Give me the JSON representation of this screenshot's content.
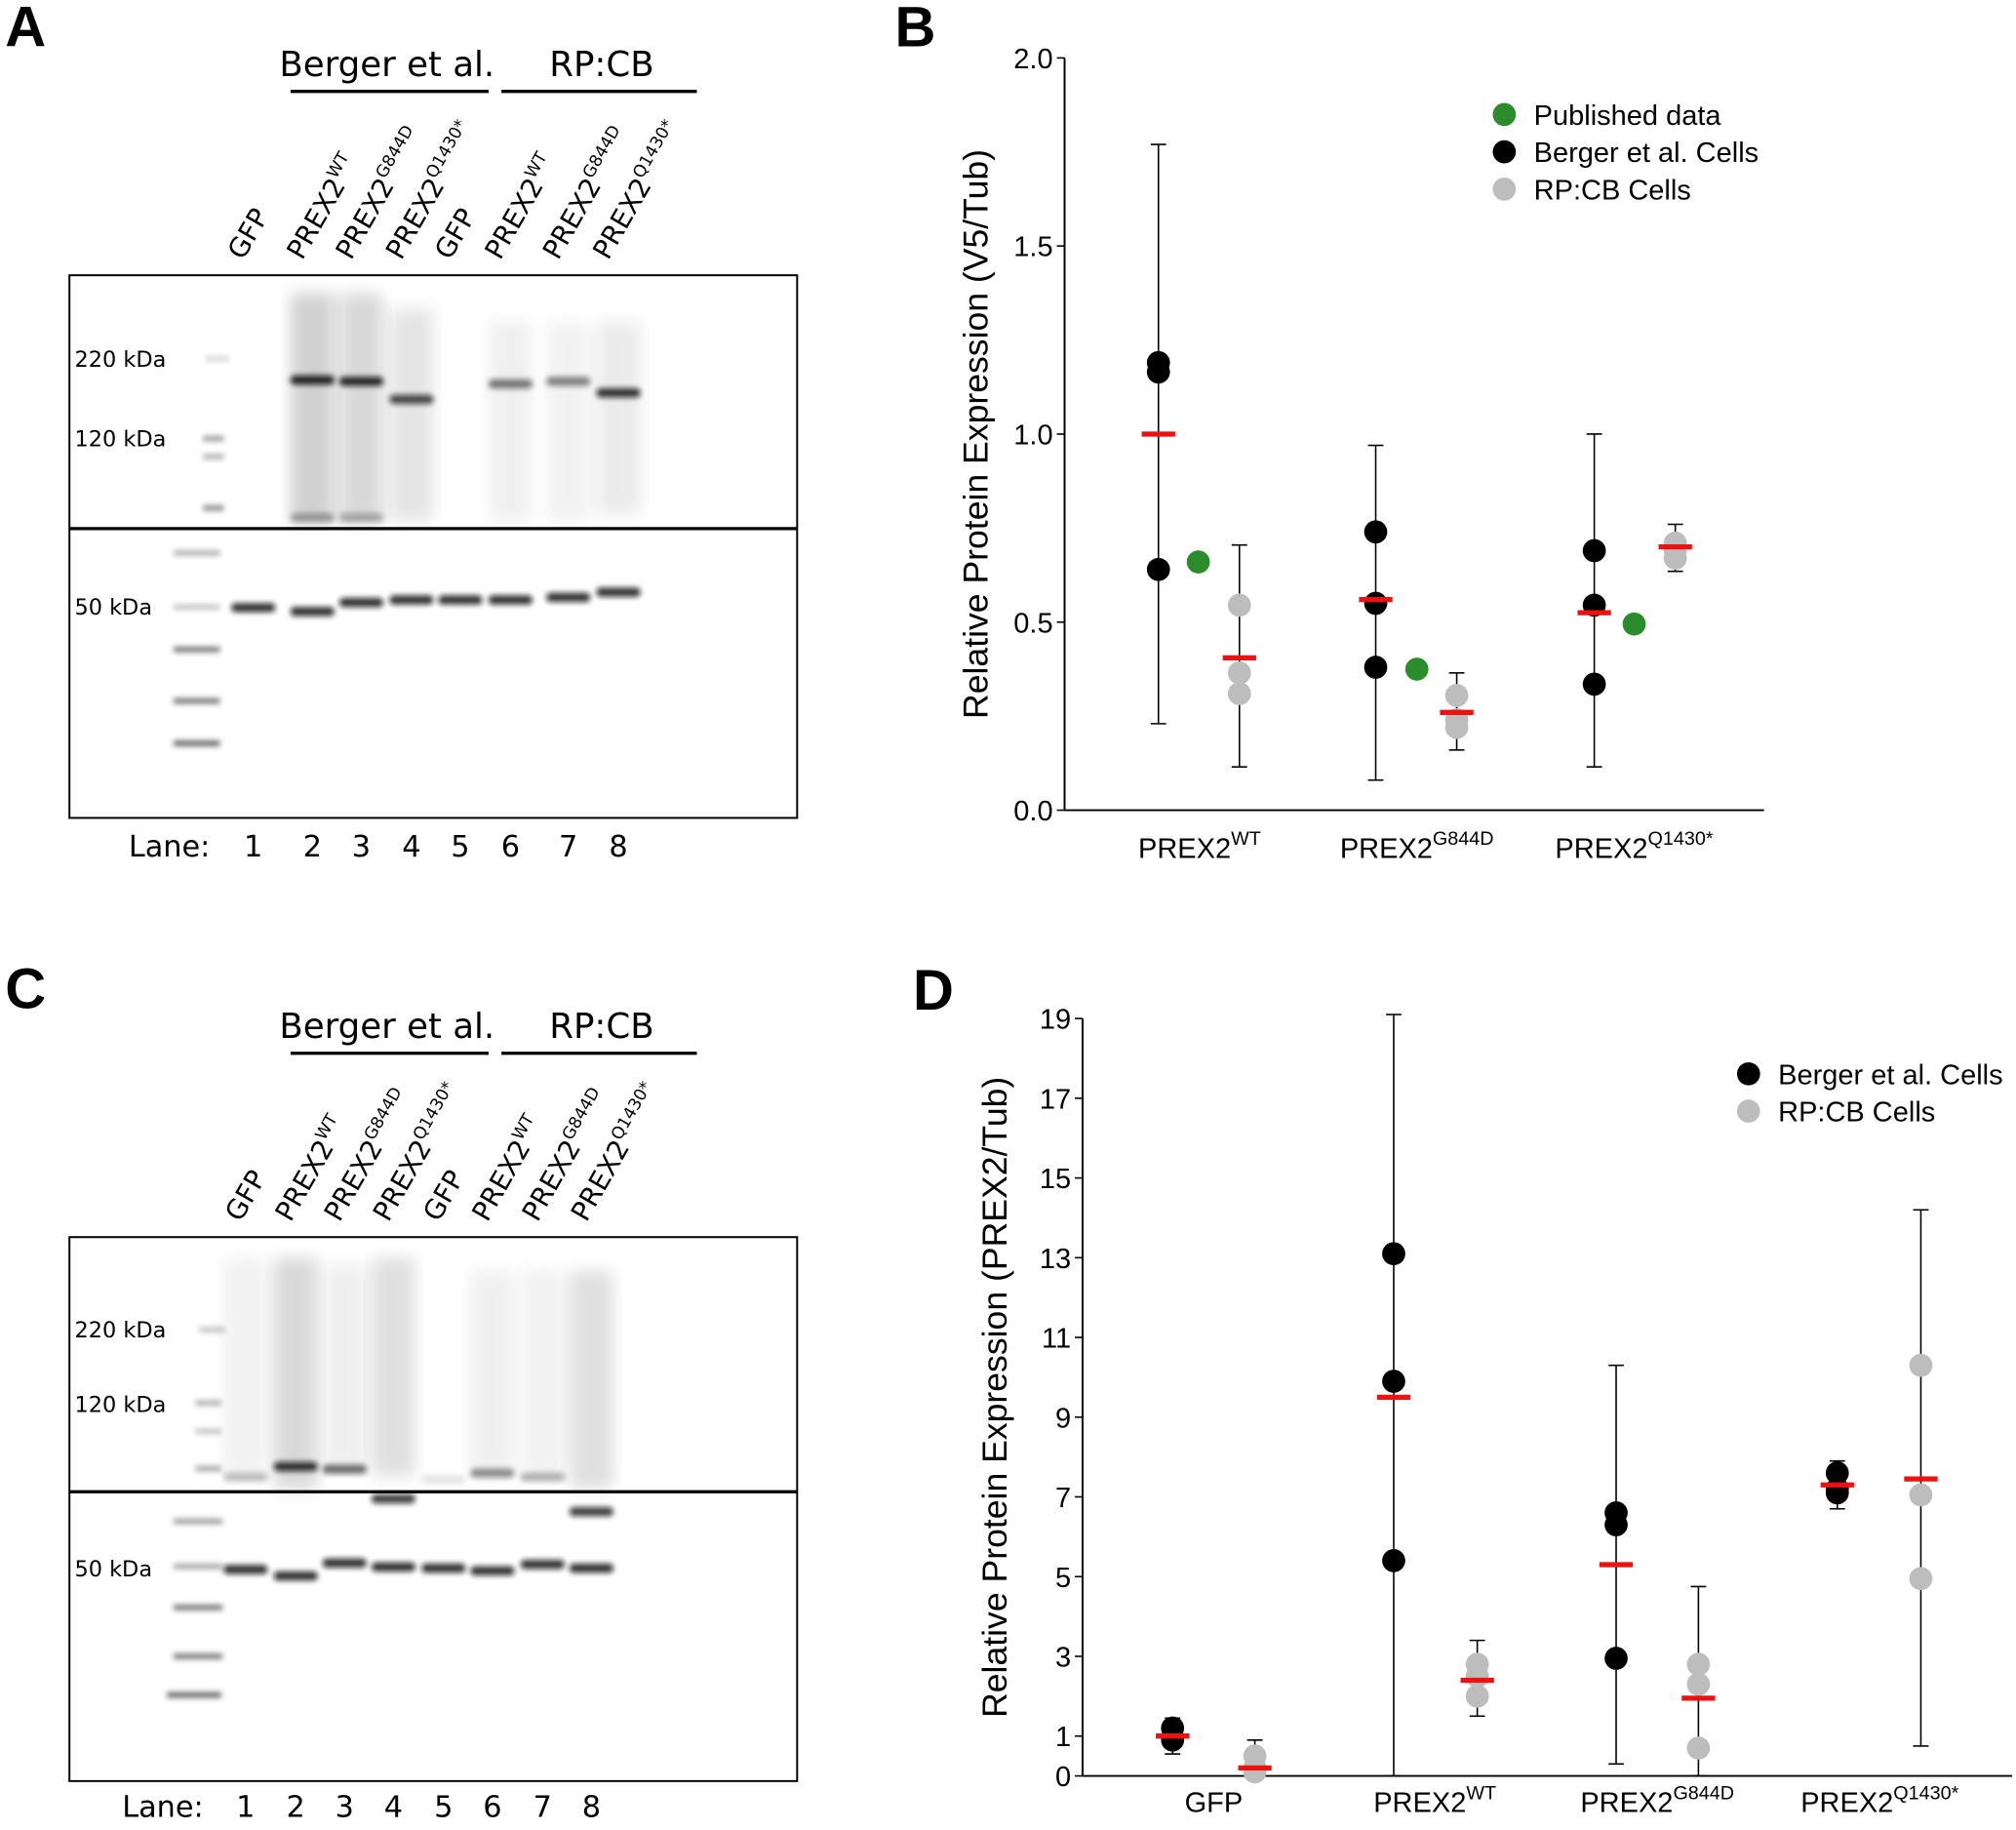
{
  "panels": {
    "A": {
      "label": "A",
      "group_labels": [
        "Berger et al.",
        "RP:CB"
      ],
      "lanes": [
        {
          "base": "GFP",
          "sup": ""
        },
        {
          "base": "PREX2",
          "sup": "WT"
        },
        {
          "base": "PREX2",
          "sup": "G844D"
        },
        {
          "base": "PREX2",
          "sup": "Q1430*"
        },
        {
          "base": "GFP",
          "sup": ""
        },
        {
          "base": "PREX2",
          "sup": "WT"
        },
        {
          "base": "PREX2",
          "sup": "G844D"
        },
        {
          "base": "PREX2",
          "sup": "Q1430*"
        }
      ],
      "markers": [
        "220 kDa",
        "120 kDa",
        "50 kDa"
      ],
      "lane_prefix": "Lane:",
      "lane_numbers": [
        "1",
        "2",
        "3",
        "4",
        "5",
        "6",
        "7",
        "8"
      ]
    },
    "C": {
      "label": "C",
      "group_labels": [
        "Berger et al.",
        "RP:CB"
      ],
      "lanes": [
        {
          "base": "GFP",
          "sup": ""
        },
        {
          "base": "PREX2",
          "sup": "WT"
        },
        {
          "base": "PREX2",
          "sup": "G844D"
        },
        {
          "base": "PREX2",
          "sup": "Q1430*"
        },
        {
          "base": "GFP",
          "sup": ""
        },
        {
          "base": "PREX2",
          "sup": "WT"
        },
        {
          "base": "PREX2",
          "sup": "G844D"
        },
        {
          "base": "PREX2",
          "sup": "Q1430*"
        }
      ],
      "markers": [
        "220 kDa",
        "120 kDa",
        "50 kDa"
      ],
      "lane_prefix": "Lane:",
      "lane_numbers": [
        "1",
        "2",
        "3",
        "4",
        "5",
        "6",
        "7",
        "8"
      ]
    },
    "B": {
      "label": "B"
    },
    "D": {
      "label": "D"
    }
  },
  "colors": {
    "published": "#2a8c2a",
    "berger": "#000000",
    "rpcb": "#bdbdbd",
    "mean": "#ee1111"
  },
  "chart_data": [
    {
      "panel": "B",
      "type": "scatter",
      "ylabel": "Relative Protein Expression (V5/Tub)",
      "ylim": [
        0,
        2.0
      ],
      "yticks": [
        "0.0",
        "0.5",
        "1.0",
        "1.5",
        "2.0"
      ],
      "categories": [
        {
          "base": "PREX2",
          "sup": "WT"
        },
        {
          "base": "PREX2",
          "sup": "G844D"
        },
        {
          "base": "PREX2",
          "sup": "Q1430*"
        }
      ],
      "legend": [
        "Published data",
        "Berger et al. Cells",
        "RP:CB Cells"
      ],
      "legend_position": "top-right",
      "series": [
        {
          "name": "Berger et al. Cells",
          "points": [
            [
              1.19,
              1.165,
              0.64
            ],
            [
              0.74,
              0.55,
              0.38
            ],
            [
              0.69,
              0.545,
              0.335
            ]
          ],
          "mean": [
            1.0,
            0.56,
            0.525
          ],
          "error": [
            [
              0.23,
              1.77
            ],
            [
              0.08,
              0.97
            ],
            [
              0.115,
              1.0
            ]
          ]
        },
        {
          "name": "Published data",
          "points": [
            [
              0.66
            ],
            [
              0.375
            ],
            [
              0.495
            ]
          ]
        },
        {
          "name": "RP:CB Cells",
          "points": [
            [
              0.545,
              0.365,
              0.31
            ],
            [
              0.305,
              0.24,
              0.22
            ],
            [
              0.71,
              0.67,
              0.69
            ]
          ],
          "mean": [
            0.405,
            0.26,
            0.7
          ],
          "error": [
            [
              0.115,
              0.705
            ],
            [
              0.16,
              0.365
            ],
            [
              0.635,
              0.76
            ]
          ]
        }
      ]
    },
    {
      "panel": "D",
      "type": "scatter",
      "ylabel": "Relative Protein Expression (PREX2/Tub)",
      "ylim": [
        0,
        19
      ],
      "yticks": [
        "0",
        "1",
        "3",
        "5",
        "7",
        "9",
        "11",
        "13",
        "15",
        "17",
        "19"
      ],
      "categories": [
        {
          "base": "GFP",
          "sup": ""
        },
        {
          "base": "PREX2",
          "sup": "WT"
        },
        {
          "base": "PREX2",
          "sup": "G844D"
        },
        {
          "base": "PREX2",
          "sup": "Q1430*"
        }
      ],
      "legend": [
        "Berger et al. Cells",
        "RP:CB Cells"
      ],
      "legend_position": "top-right",
      "series": [
        {
          "name": "Berger et al. Cells",
          "points": [
            [
              1.2,
              0.9,
              0.95
            ],
            [
              13.1,
              9.9,
              5.4
            ],
            [
              6.6,
              6.3,
              2.95
            ],
            [
              7.6,
              7.1,
              7.2
            ]
          ],
          "mean": [
            1.0,
            9.5,
            5.3,
            7.3
          ],
          "error": [
            [
              0.55,
              1.45
            ],
            [
              0,
              19.1
            ],
            [
              0.3,
              10.3
            ],
            [
              6.7,
              7.9
            ]
          ]
        },
        {
          "name": "RP:CB Cells",
          "points": [
            [
              0.5,
              0.2,
              0.1
            ],
            [
              2.8,
              2.5,
              2.0
            ],
            [
              2.8,
              2.3,
              0.7
            ],
            [
              10.3,
              7.05,
              4.95
            ]
          ],
          "mean": [
            0.2,
            2.4,
            1.95,
            7.45
          ],
          "error": [
            [
              0,
              0.9
            ],
            [
              1.5,
              3.4
            ],
            [
              0,
              4.75
            ],
            [
              0.75,
              14.2
            ]
          ]
        }
      ]
    }
  ]
}
